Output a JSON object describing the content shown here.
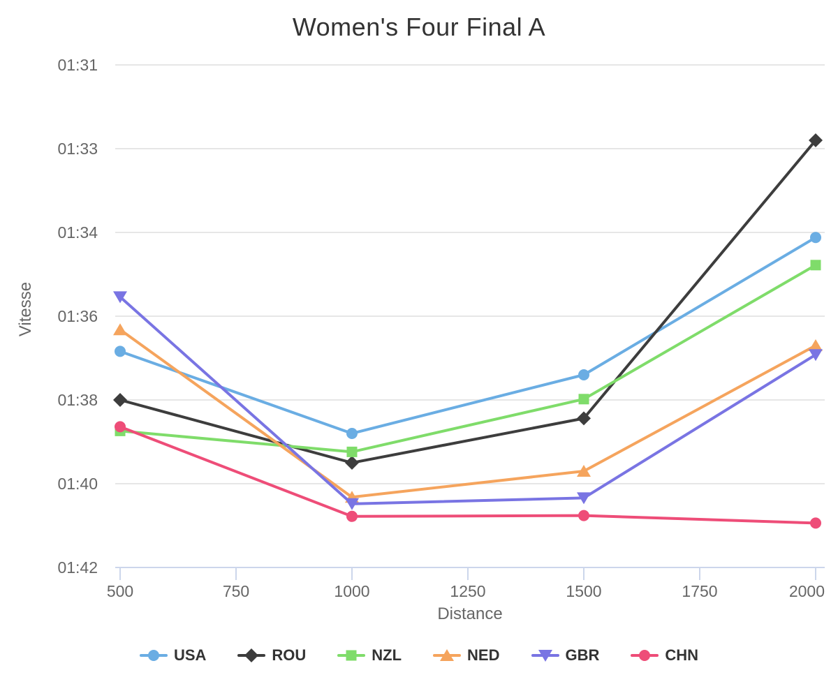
{
  "chart_data": {
    "type": "line",
    "title": "Women's Four Final A",
    "xlabel": "Distance",
    "ylabel": "Vitesse",
    "x": [
      500,
      1000,
      1500,
      2000
    ],
    "x_tick_labels": [
      "500",
      "750",
      "1000",
      "1250",
      "1500",
      "1750",
      "2000"
    ],
    "x_ticks": [
      500,
      750,
      1000,
      1250,
      1500,
      1750,
      2000
    ],
    "xlim": [
      500,
      2000
    ],
    "grid": "horizontal",
    "legend_position": "bottom",
    "y_axis": {
      "note": "axis is linear in boat speed (m/s); tick labels show equivalent time per 500 m",
      "tick_speeds_mps": [
        5.5,
        5.4,
        5.3,
        5.2,
        5.1,
        5.0,
        4.9
      ],
      "tick_labels": [
        "01:31",
        "01:33",
        "01:34",
        "01:36",
        "01:38",
        "01:40",
        "01:42"
      ],
      "top_speed_mps": 5.5,
      "bottom_speed_mps": 4.9
    },
    "series": [
      {
        "name": "USA",
        "color": "#6AADE3",
        "marker": "circle",
        "speeds_mps": [
          5.158,
          5.06,
          5.13,
          5.294
        ],
        "pace_per_500m": [
          "01:36.9",
          "01:38.8",
          "01:37.5",
          "01:34.4"
        ]
      },
      {
        "name": "ROU",
        "color": "#3D3D3D",
        "marker": "diamond",
        "speeds_mps": [
          5.1,
          5.025,
          5.078,
          5.41
        ],
        "pace_per_500m": [
          "01:38.0",
          "01:39.5",
          "01:38.5",
          "01:32.4"
        ]
      },
      {
        "name": "NZL",
        "color": "#7FDC6A",
        "marker": "square",
        "speeds_mps": [
          5.063,
          5.038,
          5.101,
          5.261
        ],
        "pace_per_500m": [
          "01:38.8",
          "01:39.2",
          "01:38.0",
          "01:35.0"
        ]
      },
      {
        "name": "NED",
        "color": "#F5A45D",
        "marker": "triangle-up",
        "speeds_mps": [
          5.184,
          4.984,
          5.015,
          5.165
        ],
        "pace_per_500m": [
          "01:36.4",
          "01:40.3",
          "01:39.7",
          "01:36.8"
        ]
      },
      {
        "name": "GBR",
        "color": "#7974E3",
        "marker": "triangle-down",
        "speeds_mps": [
          5.223,
          4.976,
          4.983,
          5.154
        ],
        "pace_per_500m": [
          "01:35.7",
          "01:40.5",
          "01:40.3",
          "01:37.0"
        ]
      },
      {
        "name": "CHN",
        "color": "#EE4D78",
        "marker": "circle",
        "speeds_mps": [
          5.068,
          4.961,
          4.962,
          4.953
        ],
        "pace_per_500m": [
          "01:38.7",
          "01:40.8",
          "01:40.8",
          "01:40.9"
        ]
      }
    ],
    "colors": {
      "gridline": "#E6E6E6",
      "axis_line": "#CCD6EB",
      "tick_label": "#666666",
      "title_text": "#333333",
      "legend_text": "#333333",
      "background": "#FFFFFF"
    }
  }
}
